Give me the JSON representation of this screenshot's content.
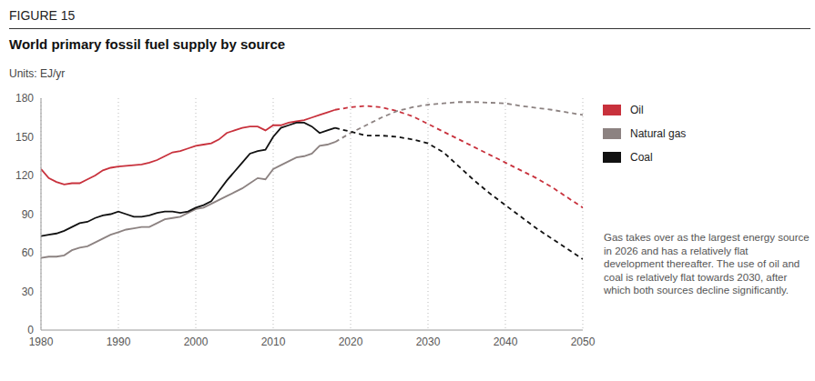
{
  "chart_data": {
    "type": "line",
    "header": "FIGURE 15",
    "title": "World primary fossil fuel supply by source",
    "subtitle": "Units: EJ/yr",
    "annotation": "Gas takes over as the largest energy source in 2026 and has a relatively flat development thereafter. The use of oil and coal is relatively flat towards 2030, after which both sources decline significantly.",
    "x": [
      1980,
      1981,
      1982,
      1983,
      1984,
      1985,
      1986,
      1987,
      1988,
      1989,
      1990,
      1991,
      1992,
      1993,
      1994,
      1995,
      1996,
      1997,
      1998,
      1999,
      2000,
      2001,
      2002,
      2003,
      2004,
      2005,
      2006,
      2007,
      2008,
      2009,
      2010,
      2011,
      2012,
      2013,
      2014,
      2015,
      2016,
      2017,
      2018,
      2020,
      2022,
      2024,
      2026,
      2028,
      2030,
      2032,
      2034,
      2036,
      2038,
      2040,
      2042,
      2044,
      2046,
      2048,
      2050
    ],
    "series": [
      {
        "name": "Oil",
        "color": "#c8313c",
        "line_style": "solid",
        "values": [
          125,
          118,
          115,
          113,
          114,
          114,
          117,
          120,
          124,
          126,
          127,
          127.5,
          128,
          128.5,
          130,
          132,
          135,
          138,
          139,
          141,
          143,
          144,
          145,
          148,
          153,
          155,
          157,
          158,
          158,
          155,
          159,
          159,
          161,
          162,
          163,
          165,
          167,
          169,
          171,
          null,
          null,
          null,
          null,
          null,
          null,
          null,
          null,
          null,
          null,
          null,
          null,
          null,
          null,
          null,
          null
        ]
      },
      {
        "name": "Oil",
        "color": "#c8313c",
        "line_style": "dashed",
        "values": [
          null,
          null,
          null,
          null,
          null,
          null,
          null,
          null,
          null,
          null,
          null,
          null,
          null,
          null,
          null,
          null,
          null,
          null,
          null,
          null,
          null,
          null,
          null,
          null,
          null,
          null,
          null,
          null,
          null,
          null,
          null,
          null,
          null,
          null,
          null,
          null,
          null,
          null,
          171,
          173,
          174,
          173,
          170,
          166,
          160,
          154,
          148,
          142,
          136,
          130,
          124,
          118,
          111,
          103,
          95
        ]
      },
      {
        "name": "Natural gas",
        "color": "#8c8281",
        "line_style": "solid",
        "values": [
          56,
          57,
          57,
          58,
          62,
          64,
          65,
          68,
          71,
          74,
          76,
          78,
          79,
          80,
          80,
          83,
          86,
          87,
          88,
          91,
          94,
          95,
          98,
          101,
          104,
          107,
          110,
          114,
          118,
          117,
          125,
          128,
          131,
          134,
          135,
          137,
          143,
          144,
          146,
          null,
          null,
          null,
          null,
          null,
          null,
          null,
          null,
          null,
          null,
          null,
          null,
          null,
          null,
          null,
          null
        ]
      },
      {
        "name": "Natural gas",
        "color": "#8c8281",
        "line_style": "dashed",
        "values": [
          null,
          null,
          null,
          null,
          null,
          null,
          null,
          null,
          null,
          null,
          null,
          null,
          null,
          null,
          null,
          null,
          null,
          null,
          null,
          null,
          null,
          null,
          null,
          null,
          null,
          null,
          null,
          null,
          null,
          null,
          null,
          null,
          null,
          null,
          null,
          null,
          null,
          null,
          146,
          153,
          159,
          165,
          170,
          173,
          175,
          176,
          177,
          177,
          176.5,
          176,
          174,
          172.5,
          171,
          169,
          167
        ]
      },
      {
        "name": "Coal",
        "color": "#111111",
        "line_style": "solid",
        "values": [
          73,
          74,
          75,
          77,
          80,
          83,
          84,
          87,
          89,
          90,
          92,
          90,
          88,
          88,
          89,
          91,
          92,
          92,
          91,
          92,
          95,
          97,
          100,
          108,
          116,
          123,
          130,
          137,
          139,
          140,
          150,
          157,
          159,
          161,
          161,
          158,
          153,
          155,
          157,
          null,
          null,
          null,
          null,
          null,
          null,
          null,
          null,
          null,
          null,
          null,
          null,
          null,
          null,
          null,
          null
        ]
      },
      {
        "name": "Coal",
        "color": "#111111",
        "line_style": "dashed",
        "values": [
          null,
          null,
          null,
          null,
          null,
          null,
          null,
          null,
          null,
          null,
          null,
          null,
          null,
          null,
          null,
          null,
          null,
          null,
          null,
          null,
          null,
          null,
          null,
          null,
          null,
          null,
          null,
          null,
          null,
          null,
          null,
          null,
          null,
          null,
          null,
          null,
          null,
          null,
          157,
          154,
          151,
          151,
          150,
          148,
          145,
          138,
          127,
          116,
          106,
          97,
          88,
          79,
          71,
          63,
          55
        ]
      }
    ],
    "xlim": [
      1980,
      2050
    ],
    "xticks": [
      1980,
      1990,
      2000,
      2010,
      2020,
      2030,
      2040,
      2050
    ],
    "ylim": [
      0,
      180
    ],
    "yticks": [
      0,
      30,
      60,
      90,
      120,
      150,
      180
    ],
    "grid": true,
    "legend": "right"
  }
}
